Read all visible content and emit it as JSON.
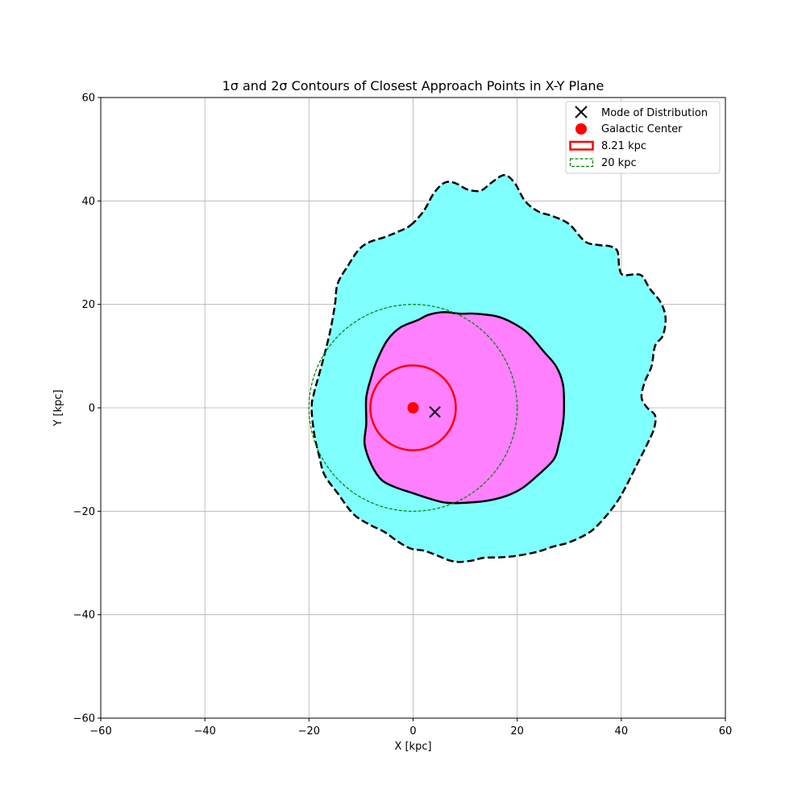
{
  "chart_data": {
    "type": "contour",
    "title": "1σ and 2σ Contours of Closest Approach Points in X-Y Plane",
    "xlabel": "X [kpc]",
    "ylabel": "Y [kpc]",
    "xlim": [
      -60,
      60
    ],
    "ylim": [
      -60,
      60
    ],
    "xticks": [
      -60,
      -40,
      -20,
      0,
      20,
      40,
      60
    ],
    "yticks": [
      -60,
      -40,
      -20,
      0,
      20,
      40,
      60
    ],
    "xtick_labels": [
      "−60",
      "−40",
      "−20",
      "0",
      "20",
      "40",
      "60"
    ],
    "ytick_labels": [
      "−60",
      "−40",
      "−20",
      "0",
      "20",
      "40",
      "60"
    ],
    "grid": true,
    "legend_position": "top-right",
    "colors": {
      "two_sigma_fill": "#80ffff",
      "one_sigma_fill": "#ff80ff",
      "contour_line": "#000000",
      "circle_8kpc": "#ff0000",
      "circle_20kpc": "#008000",
      "galactic_center": "#ff0000",
      "mode_marker": "#000000",
      "grid": "#b0b0b0"
    },
    "mode": {
      "x": 4.2,
      "y": -0.8
    },
    "galactic_center": {
      "x": 0,
      "y": 0
    },
    "circles": [
      {
        "radius": 8.21,
        "style": "solid"
      },
      {
        "radius": 20,
        "style": "dashed"
      }
    ],
    "contour_2sigma": [
      [
        -0.5,
        35.3
      ],
      [
        2,
        38
      ],
      [
        4,
        41.5
      ],
      [
        6,
        43.5
      ],
      [
        8,
        43.5
      ],
      [
        10.5,
        42.2
      ],
      [
        13,
        42
      ],
      [
        15,
        43.5
      ],
      [
        17.5,
        45
      ],
      [
        19.5,
        43.5
      ],
      [
        21.5,
        40
      ],
      [
        24,
        38
      ],
      [
        27,
        37
      ],
      [
        30,
        35.5
      ],
      [
        33,
        32.2
      ],
      [
        35.5,
        31.5
      ],
      [
        38,
        31.2
      ],
      [
        39.3,
        30.2
      ],
      [
        39.6,
        27.2
      ],
      [
        40.3,
        25.7
      ],
      [
        42.5,
        25.8
      ],
      [
        44,
        25.5
      ],
      [
        45.5,
        23
      ],
      [
        47.5,
        20.5
      ],
      [
        48.5,
        17.5
      ],
      [
        48,
        14
      ],
      [
        46.5,
        12
      ],
      [
        45.8,
        8
      ],
      [
        44.5,
        5
      ],
      [
        43.9,
        2
      ],
      [
        45,
        0
      ],
      [
        46.5,
        -1.5
      ],
      [
        46.3,
        -4
      ],
      [
        45,
        -7
      ],
      [
        43.5,
        -10
      ],
      [
        42.5,
        -12
      ],
      [
        41,
        -15
      ],
      [
        39.3,
        -18
      ],
      [
        37,
        -21
      ],
      [
        34,
        -24
      ],
      [
        30,
        -26
      ],
      [
        27,
        -26.8
      ],
      [
        24,
        -27.8
      ],
      [
        20,
        -28.6
      ],
      [
        17,
        -28.9
      ],
      [
        13.5,
        -29
      ],
      [
        11.5,
        -29.5
      ],
      [
        9,
        -29.8
      ],
      [
        7,
        -29.5
      ],
      [
        4.5,
        -28.5
      ],
      [
        2,
        -27.6
      ],
      [
        -0.5,
        -27.2
      ],
      [
        -3,
        -25.8
      ],
      [
        -5.5,
        -24
      ],
      [
        -8.5,
        -22.5
      ],
      [
        -11.5,
        -20.5
      ],
      [
        -14.5,
        -16.5
      ],
      [
        -17,
        -13
      ],
      [
        -18,
        -9.5
      ],
      [
        -19,
        -5
      ],
      [
        -19.5,
        0
      ],
      [
        -19,
        3
      ],
      [
        -17.5,
        8.5
      ],
      [
        -16,
        14.5
      ],
      [
        -15,
        20
      ],
      [
        -14.5,
        24
      ],
      [
        -12.5,
        27.5
      ],
      [
        -10.5,
        30.5
      ],
      [
        -8.5,
        32
      ],
      [
        -5.5,
        33
      ],
      [
        -3,
        34
      ]
    ],
    "contour_1sigma": [
      [
        -2.5,
        15.5
      ],
      [
        1,
        17
      ],
      [
        3,
        18
      ],
      [
        6,
        18.5
      ],
      [
        9,
        18.2
      ],
      [
        12,
        18.2
      ],
      [
        16,
        17.7
      ],
      [
        19,
        16.5
      ],
      [
        22,
        14.5
      ],
      [
        25,
        11
      ],
      [
        27.5,
        8
      ],
      [
        28.8,
        4.5
      ],
      [
        29,
        0
      ],
      [
        28.8,
        -3
      ],
      [
        28,
        -7
      ],
      [
        27,
        -10
      ],
      [
        24,
        -13
      ],
      [
        21,
        -15.5
      ],
      [
        18,
        -17
      ],
      [
        14,
        -18
      ],
      [
        9,
        -18.4
      ],
      [
        6,
        -18.3
      ],
      [
        3,
        -17.5
      ],
      [
        0,
        -16.5
      ],
      [
        -3,
        -15.5
      ],
      [
        -6,
        -14
      ],
      [
        -8,
        -11
      ],
      [
        -9.3,
        -7
      ],
      [
        -9,
        -3
      ],
      [
        -9,
        2
      ],
      [
        -8,
        6
      ],
      [
        -7,
        9
      ],
      [
        -5,
        13
      ]
    ]
  },
  "legend": {
    "items": [
      {
        "label": "Mode of Distribution"
      },
      {
        "label": "Galactic Center"
      },
      {
        "label": "8.21 kpc"
      },
      {
        "label": "20 kpc"
      }
    ]
  }
}
